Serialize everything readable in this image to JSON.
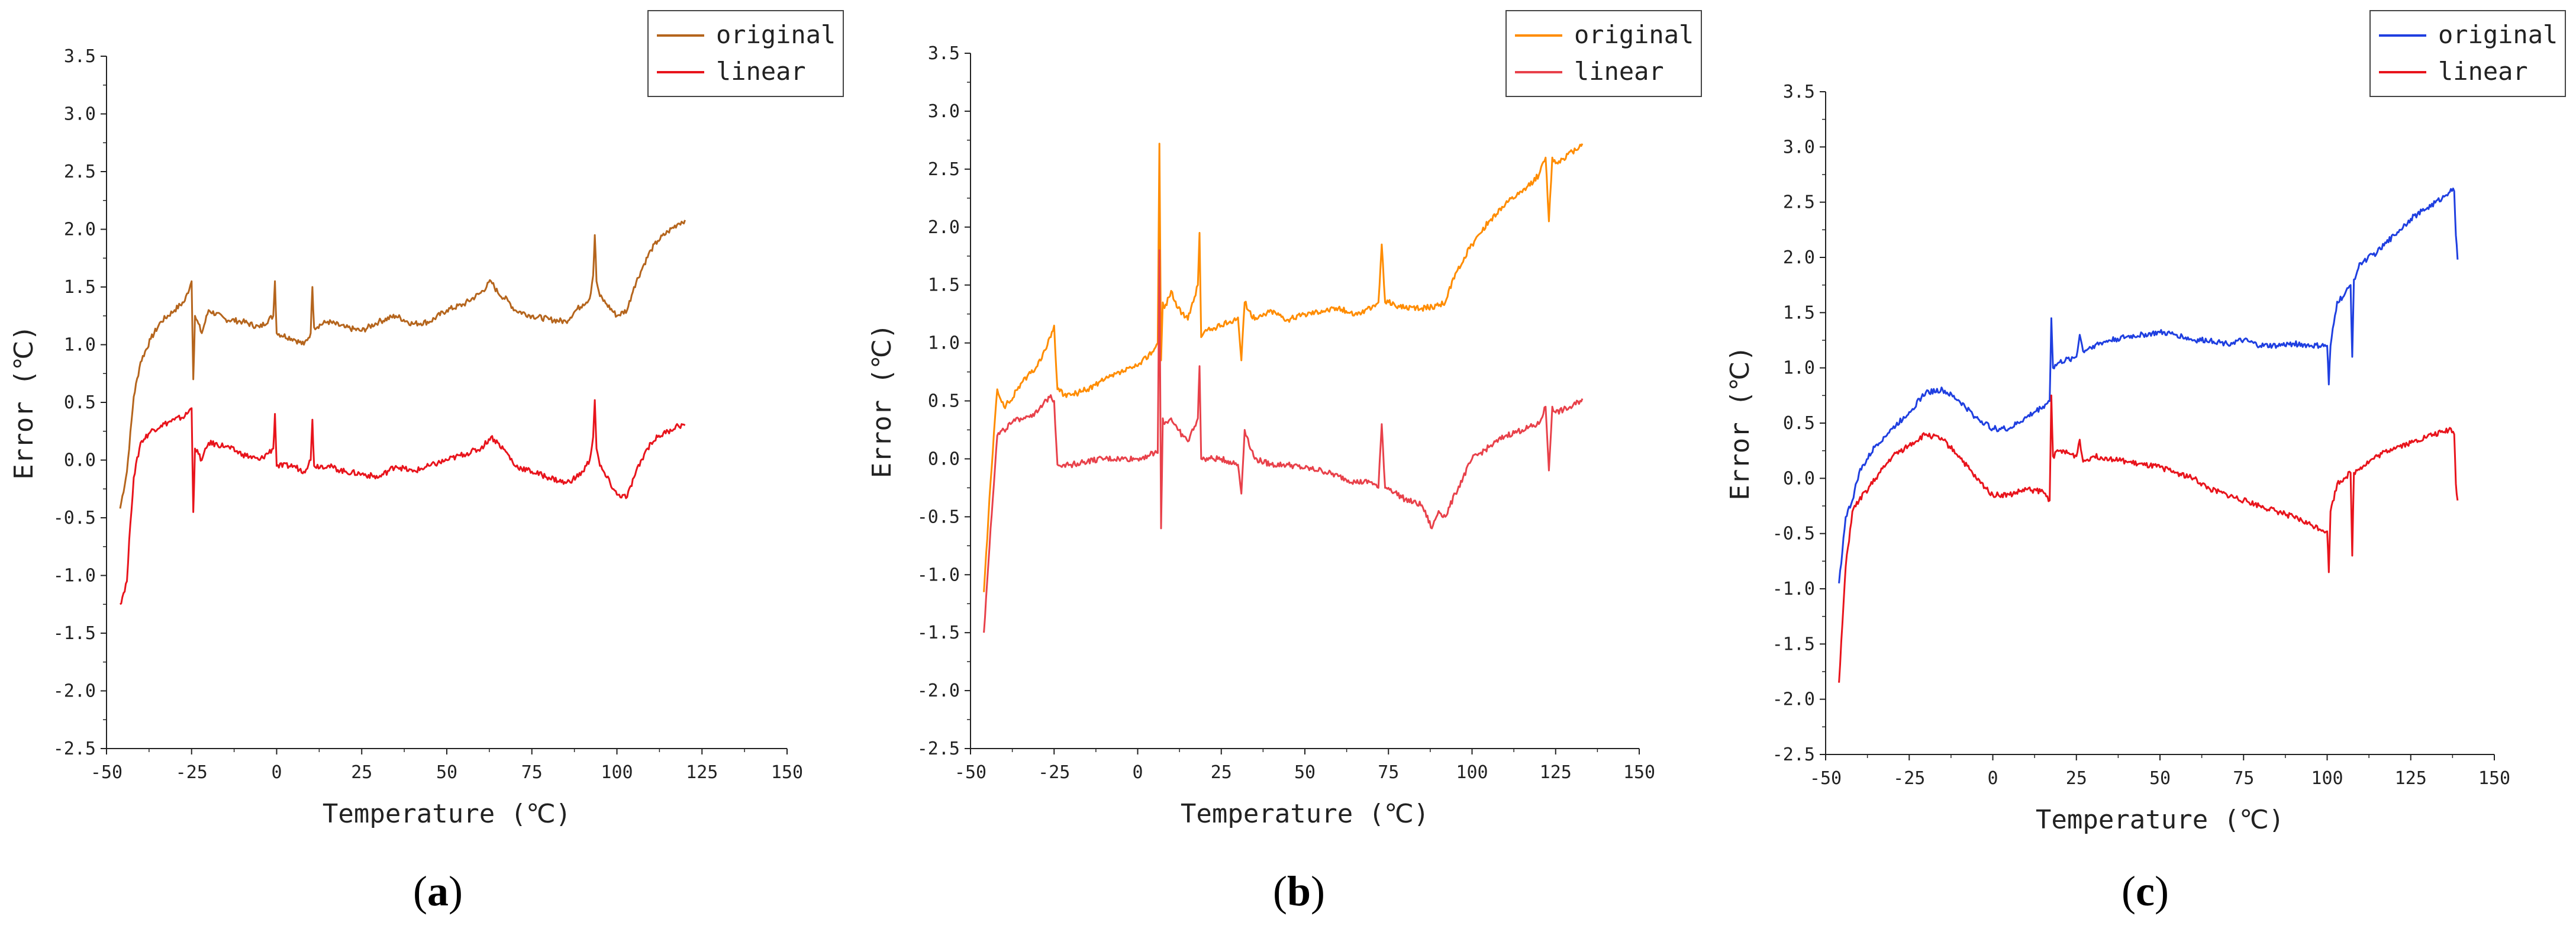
{
  "figure": {
    "panels": [
      "a",
      "b",
      "c"
    ]
  },
  "chart_data": [
    {
      "type": "line",
      "panel": "a",
      "caption_open": "(",
      "caption_letter": "a",
      "caption_close": ")",
      "xlabel": "Temperature (℃)",
      "ylabel": "Error (℃)",
      "xlim": [
        -50,
        150
      ],
      "ylim": [
        -2.5,
        3.5
      ],
      "xticks": [
        -50,
        -25,
        0,
        25,
        50,
        75,
        100,
        125,
        150
      ],
      "yticks": [
        -2.5,
        -2.0,
        -1.5,
        -1.0,
        -0.5,
        0.0,
        0.5,
        1.0,
        1.5,
        2.0,
        2.5,
        3.0,
        3.5
      ],
      "xtick_labels": [
        "-50",
        "-25",
        "0",
        "25",
        "50",
        "75",
        "100",
        "125",
        "150"
      ],
      "ytick_labels": [
        "-2.5",
        "-2.0",
        "-1.5",
        "-1.0",
        "-0.5",
        "0.0",
        "0.5",
        "1.0",
        "1.5",
        "2.0",
        "2.5",
        "3.0",
        "3.5"
      ],
      "legend_position": "top-right",
      "series": [
        {
          "name": "original",
          "color": "#b5651d",
          "x": [
            -46,
            -44,
            -42,
            -40,
            -37,
            -34,
            -30,
            -27,
            -25,
            -24.5,
            -24,
            -22,
            -20,
            -15,
            -10,
            -5,
            -1,
            -0.5,
            0,
            5,
            8,
            10,
            10.5,
            11,
            15,
            20,
            25,
            30,
            35,
            40,
            45,
            50,
            55,
            60,
            63,
            65,
            68,
            70,
            75,
            80,
            85,
            88,
            90,
            92,
            93,
            93.5,
            94,
            95,
            97,
            100,
            103,
            105,
            108,
            110,
            112,
            115,
            118,
            120
          ],
          "y": [
            -0.42,
            -0.1,
            0.55,
            0.85,
            1.05,
            1.2,
            1.3,
            1.38,
            1.55,
            0.7,
            1.25,
            1.1,
            1.3,
            1.22,
            1.2,
            1.15,
            1.25,
            1.55,
            1.1,
            1.05,
            1.0,
            1.1,
            1.5,
            1.15,
            1.2,
            1.15,
            1.12,
            1.2,
            1.25,
            1.18,
            1.2,
            1.3,
            1.35,
            1.45,
            1.55,
            1.45,
            1.38,
            1.3,
            1.25,
            1.22,
            1.2,
            1.3,
            1.35,
            1.4,
            1.6,
            1.95,
            1.55,
            1.42,
            1.35,
            1.25,
            1.3,
            1.5,
            1.7,
            1.82,
            1.9,
            1.98,
            2.05,
            2.08
          ]
        },
        {
          "name": "linear",
          "color": "#e8141c",
          "x": [
            -46,
            -44,
            -43,
            -42,
            -40,
            -37,
            -34,
            -30,
            -27,
            -25,
            -24.5,
            -24,
            -22,
            -20,
            -15,
            -10,
            -5,
            -1,
            -0.5,
            0,
            5,
            8,
            10,
            10.5,
            11,
            15,
            20,
            25,
            30,
            35,
            40,
            45,
            50,
            55,
            60,
            63,
            65,
            68,
            70,
            75,
            80,
            85,
            88,
            90,
            92,
            93,
            93.5,
            94,
            95,
            97,
            100,
            103,
            105,
            108,
            110,
            112,
            115,
            118,
            120
          ],
          "y": [
            -1.25,
            -1.05,
            -0.55,
            -0.15,
            0.15,
            0.25,
            0.3,
            0.35,
            0.38,
            0.45,
            -0.45,
            0.1,
            0.0,
            0.15,
            0.12,
            0.05,
            0.0,
            0.1,
            0.4,
            -0.05,
            -0.05,
            -0.1,
            0.0,
            0.35,
            -0.05,
            -0.05,
            -0.1,
            -0.12,
            -0.15,
            -0.05,
            -0.1,
            -0.05,
            0.0,
            0.05,
            0.1,
            0.2,
            0.15,
            0.05,
            -0.05,
            -0.1,
            -0.15,
            -0.2,
            -0.15,
            -0.1,
            0.0,
            0.2,
            0.52,
            0.1,
            -0.05,
            -0.15,
            -0.3,
            -0.32,
            -0.15,
            0.05,
            0.15,
            0.2,
            0.25,
            0.3,
            0.3
          ]
        }
      ]
    },
    {
      "type": "line",
      "panel": "b",
      "caption_open": "(",
      "caption_letter": "b",
      "caption_close": ")",
      "xlabel": "Temperature (℃)",
      "ylabel": "Error (℃)",
      "xlim": [
        -50,
        150
      ],
      "ylim": [
        -2.5,
        3.5
      ],
      "xticks": [
        -50,
        -25,
        0,
        25,
        50,
        75,
        100,
        125,
        150
      ],
      "yticks": [
        -2.5,
        -2.0,
        -1.5,
        -1.0,
        -0.5,
        0.0,
        0.5,
        1.0,
        1.5,
        2.0,
        2.5,
        3.0,
        3.5
      ],
      "xtick_labels": [
        "-50",
        "-25",
        "0",
        "25",
        "50",
        "75",
        "100",
        "125",
        "150"
      ],
      "ytick_labels": [
        "-2.5",
        "-2.0",
        "-1.5",
        "-1.0",
        "-0.5",
        "0.0",
        "0.5",
        "1.0",
        "1.5",
        "2.0",
        "2.5",
        "3.0",
        "3.5"
      ],
      "legend_position": "top-right",
      "series": [
        {
          "name": "original",
          "color": "#ff8c00",
          "x": [
            -46,
            -44,
            -42,
            -40,
            -38,
            -35,
            -30,
            -26,
            -25,
            -24,
            -22,
            -20,
            -15,
            -10,
            -5,
            0,
            5,
            6,
            6.5,
            7,
            7.5,
            8,
            10,
            12,
            15,
            18,
            18.5,
            19,
            20,
            25,
            30,
            31,
            32,
            35,
            40,
            45,
            50,
            55,
            60,
            65,
            70,
            72,
            73,
            74,
            75,
            80,
            85,
            90,
            92,
            95,
            100,
            105,
            110,
            115,
            120,
            122,
            123,
            124,
            125,
            130,
            133
          ],
          "y": [
            -1.15,
            -0.2,
            0.6,
            0.45,
            0.5,
            0.65,
            0.8,
            1.05,
            1.15,
            0.6,
            0.55,
            0.55,
            0.6,
            0.68,
            0.75,
            0.8,
            0.95,
            1.0,
            2.72,
            0.85,
            1.35,
            1.3,
            1.45,
            1.3,
            1.2,
            1.5,
            1.95,
            1.05,
            1.1,
            1.15,
            1.22,
            0.85,
            1.35,
            1.2,
            1.28,
            1.2,
            1.25,
            1.28,
            1.3,
            1.25,
            1.3,
            1.35,
            1.85,
            1.35,
            1.35,
            1.3,
            1.3,
            1.32,
            1.35,
            1.6,
            1.85,
            2.05,
            2.2,
            2.3,
            2.45,
            2.6,
            2.05,
            2.6,
            2.55,
            2.65,
            2.72
          ]
        },
        {
          "name": "linear",
          "color": "#e8414a",
          "x": [
            -46,
            -44,
            -42,
            -40,
            -38,
            -35,
            -30,
            -26,
            -25,
            -24,
            -22,
            -20,
            -15,
            -10,
            -5,
            0,
            5,
            6,
            6.5,
            7,
            7.5,
            8,
            10,
            12,
            15,
            18,
            18.5,
            19,
            20,
            25,
            30,
            31,
            32,
            35,
            40,
            45,
            50,
            55,
            60,
            65,
            70,
            72,
            73,
            74,
            75,
            80,
            85,
            88,
            90,
            92,
            95,
            100,
            105,
            110,
            115,
            120,
            122,
            123,
            124,
            125,
            130,
            133
          ],
          "y": [
            -1.5,
            -0.6,
            0.2,
            0.25,
            0.3,
            0.35,
            0.4,
            0.55,
            0.5,
            -0.05,
            -0.05,
            -0.05,
            -0.02,
            0.0,
            0.0,
            0.0,
            0.05,
            0.05,
            1.8,
            -0.6,
            0.35,
            0.3,
            0.35,
            0.25,
            0.15,
            0.35,
            0.8,
            0.0,
            0.0,
            0.0,
            -0.05,
            -0.3,
            0.25,
            0.0,
            -0.05,
            -0.05,
            -0.08,
            -0.1,
            -0.15,
            -0.2,
            -0.2,
            -0.25,
            0.3,
            -0.25,
            -0.25,
            -0.35,
            -0.4,
            -0.6,
            -0.45,
            -0.5,
            -0.3,
            0.0,
            0.1,
            0.2,
            0.25,
            0.3,
            0.45,
            -0.1,
            0.45,
            0.4,
            0.45,
            0.52
          ]
        }
      ]
    },
    {
      "type": "line",
      "panel": "c",
      "caption_open": "(",
      "caption_letter": "c",
      "caption_close": ")",
      "xlabel": "Temperature (℃)",
      "ylabel": "Error (℃)",
      "xlim": [
        -50,
        150
      ],
      "ylim": [
        -2.5,
        3.5
      ],
      "xticks": [
        -50,
        -25,
        0,
        25,
        50,
        75,
        100,
        125,
        150
      ],
      "yticks": [
        -2.5,
        -2.0,
        -1.5,
        -1.0,
        -0.5,
        0.0,
        0.5,
        1.0,
        1.5,
        2.0,
        2.5,
        3.0,
        3.5
      ],
      "xtick_labels": [
        "-50",
        "-25",
        "0",
        "25",
        "50",
        "75",
        "100",
        "125",
        "150"
      ],
      "ytick_labels": [
        "-2.5",
        "-2.0",
        "-1.5",
        "-1.0",
        "-0.5",
        "0.0",
        "0.5",
        "1.0",
        "1.5",
        "2.0",
        "2.5",
        "3.0",
        "3.5"
      ],
      "legend_position": "top-right",
      "series": [
        {
          "name": "original",
          "color": "#1f3fe0",
          "x": [
            -46,
            -44,
            -42,
            -40,
            -35,
            -30,
            -25,
            -20,
            -15,
            -10,
            -5,
            0,
            5,
            10,
            15,
            17,
            17.5,
            18,
            20,
            25,
            26,
            27,
            30,
            35,
            40,
            45,
            50,
            55,
            60,
            65,
            70,
            75,
            80,
            85,
            90,
            95,
            100,
            100.5,
            101,
            103,
            105,
            107,
            107.5,
            108,
            110,
            115,
            120,
            125,
            130,
            135,
            137,
            138,
            138.5,
            139
          ],
          "y": [
            -0.95,
            -0.35,
            -0.2,
            0.05,
            0.3,
            0.45,
            0.6,
            0.78,
            0.8,
            0.7,
            0.55,
            0.45,
            0.45,
            0.55,
            0.65,
            0.7,
            1.45,
            1.0,
            1.05,
            1.1,
            1.3,
            1.15,
            1.2,
            1.25,
            1.28,
            1.3,
            1.32,
            1.3,
            1.25,
            1.25,
            1.22,
            1.25,
            1.2,
            1.2,
            1.22,
            1.2,
            1.2,
            0.85,
            1.2,
            1.6,
            1.65,
            1.75,
            1.1,
            1.8,
            1.95,
            2.05,
            2.2,
            2.35,
            2.45,
            2.55,
            2.62,
            2.6,
            2.2,
            1.98
          ]
        },
        {
          "name": "linear",
          "color": "#e8141c",
          "x": [
            -46,
            -44,
            -42,
            -40,
            -35,
            -30,
            -25,
            -20,
            -15,
            -10,
            -5,
            0,
            5,
            10,
            15,
            17,
            17.5,
            18,
            20,
            25,
            26,
            27,
            30,
            35,
            40,
            45,
            50,
            55,
            60,
            65,
            70,
            75,
            80,
            85,
            90,
            95,
            100,
            100.5,
            101,
            103,
            105,
            107,
            107.5,
            108,
            110,
            115,
            120,
            125,
            130,
            135,
            137,
            138,
            138.5,
            139
          ],
          "y": [
            -1.85,
            -0.8,
            -0.3,
            -0.2,
            0.0,
            0.2,
            0.3,
            0.4,
            0.35,
            0.2,
            0.0,
            -0.15,
            -0.15,
            -0.1,
            -0.12,
            -0.2,
            0.75,
            0.2,
            0.25,
            0.2,
            0.35,
            0.15,
            0.2,
            0.18,
            0.15,
            0.12,
            0.1,
            0.05,
            0.0,
            -0.1,
            -0.15,
            -0.2,
            -0.25,
            -0.3,
            -0.35,
            -0.42,
            -0.48,
            -0.85,
            -0.3,
            -0.05,
            0.0,
            0.05,
            -0.7,
            0.05,
            0.1,
            0.2,
            0.28,
            0.32,
            0.38,
            0.42,
            0.45,
            0.4,
            -0.05,
            -0.2
          ]
        }
      ]
    }
  ]
}
